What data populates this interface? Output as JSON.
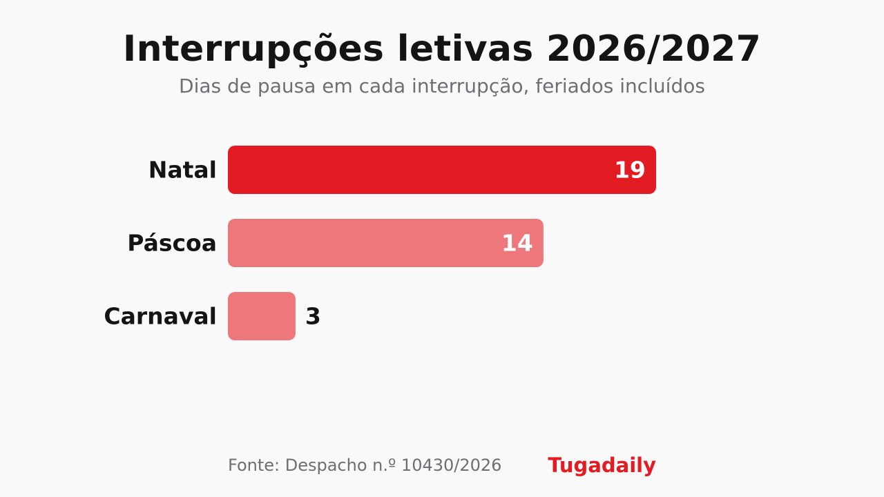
{
  "header": {
    "title": "Interrupções letivas 2026/2027",
    "subtitle": "Dias de pausa em cada interrupção, feriados incluídos"
  },
  "footer": {
    "source": "Fonte: Despacho n.º 10430/2026",
    "brand": "Tugadaily"
  },
  "colors": {
    "highlight": "#e31b23",
    "muted": "#ee777b",
    "value_inside": "#ffffff",
    "value_outside": "#141414"
  },
  "chart_data": {
    "type": "bar",
    "orientation": "horizontal",
    "categories": [
      "Natal",
      "Páscoa",
      "Carnaval"
    ],
    "values": [
      19,
      14,
      3
    ],
    "value_labels": [
      "19",
      "14",
      "3"
    ],
    "highlighted_category": "Natal",
    "xlim": [
      0,
      19
    ],
    "grid": false,
    "legend": "none"
  }
}
